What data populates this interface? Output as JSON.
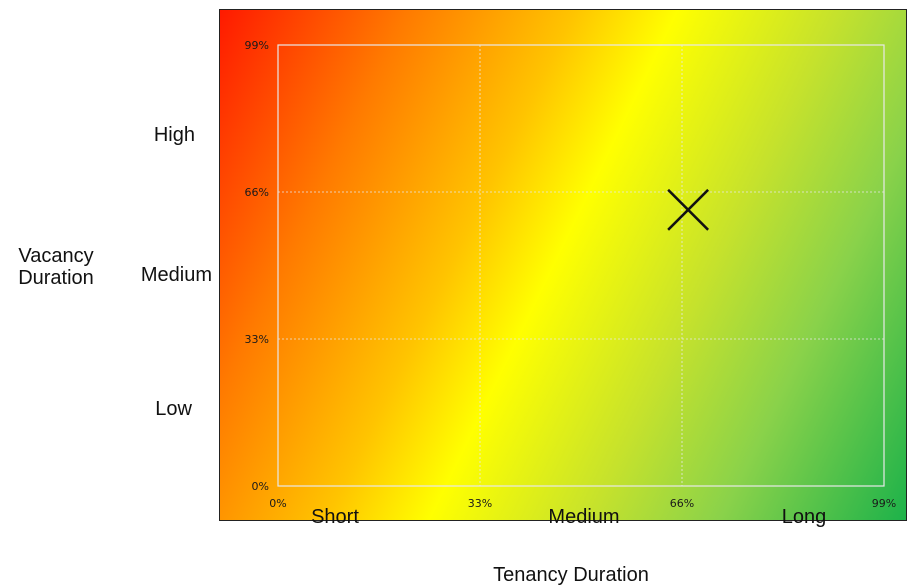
{
  "chart_data": {
    "type": "scatter",
    "xlabel": "Tenancy Duration",
    "ylabel": "Vacancy Duration",
    "x_categories": [
      "Short",
      "Medium",
      "Long"
    ],
    "y_categories": [
      "Low",
      "Medium",
      "High"
    ],
    "x_ticks": [
      "0%",
      "33%",
      "66%",
      "99%"
    ],
    "y_ticks": [
      "0%",
      "33%",
      "66%",
      "99%"
    ],
    "xlim": [
      0,
      99
    ],
    "ylim": [
      0,
      99
    ],
    "grid": true,
    "points": [
      {
        "x": 67,
        "y": 62,
        "marker": "x"
      }
    ],
    "colors": {
      "low_low": "#ff1a00",
      "mid": "#ffff00",
      "high": "#1db24a",
      "marker": "#111111",
      "grid": "#e8e8e8"
    }
  }
}
